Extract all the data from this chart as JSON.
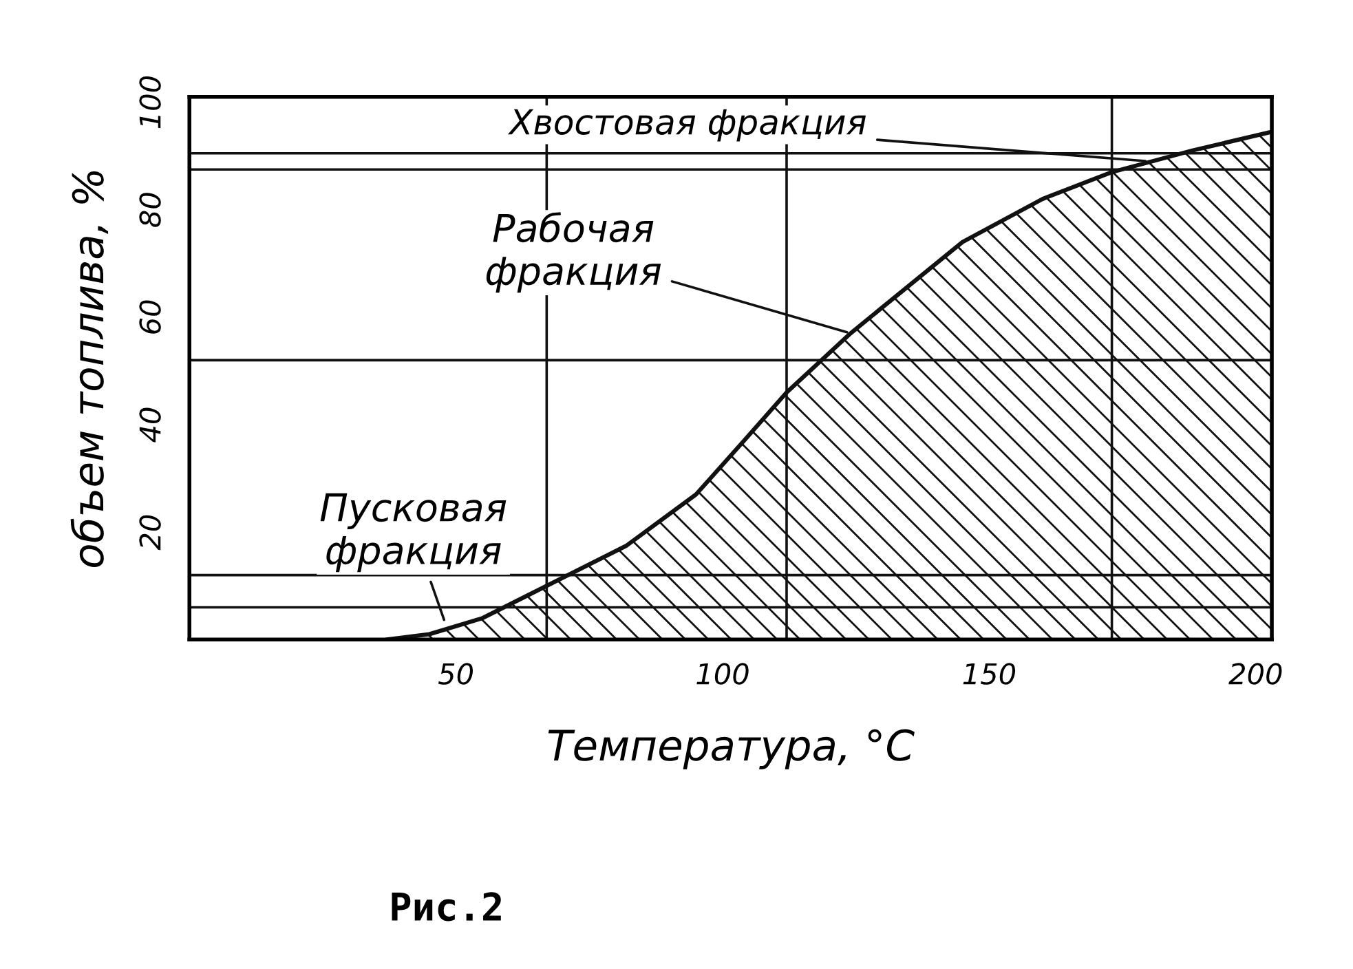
{
  "chart_data": {
    "type": "line",
    "xlabel": "Температура, °C",
    "ylabel": "объем топлива, %",
    "xlim": [
      0,
      203
    ],
    "ylim": [
      0,
      101
    ],
    "xticks": [
      50,
      100,
      150,
      200
    ],
    "yticks": [
      20,
      40,
      60,
      80,
      100
    ],
    "grid": false,
    "series": [
      {
        "color": "#111111",
        "x": [
          37,
          45,
          55,
          67,
          82,
          95,
          104,
          112,
          124,
          145,
          160,
          173,
          188,
          203
        ],
        "values": [
          0,
          1,
          4,
          10,
          17.5,
          27,
          37,
          46,
          57,
          74,
          82,
          87,
          91,
          94.5
        ]
      },
      {
        "color": "#111111",
        "type": "area",
        "x": [
          37,
          45,
          55,
          67
        ],
        "values": [
          0,
          1,
          4,
          10
        ]
      },
      {
        "color": "#111111",
        "type": "area",
        "x": [
          67,
          82,
          95,
          104,
          112,
          124,
          145,
          160,
          173
        ],
        "values": [
          10,
          17.5,
          27,
          37,
          46,
          57,
          74,
          82,
          87
        ]
      },
      {
        "color": "#111111",
        "type": "area",
        "x": [
          173,
          188,
          203
        ],
        "values": [
          87,
          91,
          94.5
        ]
      }
    ],
    "ref_lines": [
      {
        "axis": "y",
        "value": 6
      },
      {
        "axis": "y",
        "value": 12
      },
      {
        "axis": "y",
        "value": 52
      },
      {
        "axis": "y",
        "value": 87.5
      },
      {
        "axis": "y",
        "value": 90.5
      },
      {
        "axis": "x",
        "value": 67
      },
      {
        "axis": "x",
        "value": 112
      },
      {
        "axis": "x",
        "value": 173
      }
    ],
    "annotations": [
      {
        "text": "Хвостовая фракция",
        "x": 180,
        "y": 89
      },
      {
        "text": "Рабочая фракция",
        "x": 124,
        "y": 57
      },
      {
        "text": "Пусковая фракция",
        "x": 48,
        "y": 3
      },
      "Рис.2"
    ]
  }
}
